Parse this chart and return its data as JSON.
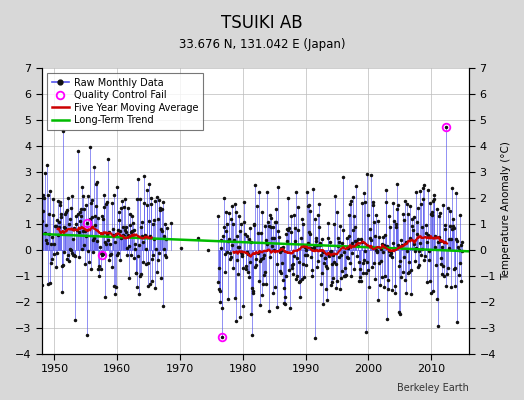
{
  "title": "TSUIKI AB",
  "subtitle": "33.676 N, 131.042 E (Japan)",
  "ylabel": "Temperature Anomaly (°C)",
  "credit": "Berkeley Earth",
  "xlim": [
    1948,
    2016
  ],
  "ylim": [
    -4,
    7
  ],
  "yticks": [
    -4,
    -3,
    -2,
    -1,
    0,
    1,
    2,
    3,
    4,
    5,
    6,
    7
  ],
  "xticks": [
    1950,
    1960,
    1970,
    1980,
    1990,
    2000,
    2010
  ],
  "bg_color": "#d8d8d8",
  "plot_bg_color": "#ffffff",
  "stem_color": "#5555ee",
  "dot_color": "#111111",
  "ma_color": "#cc0000",
  "trend_color": "#00bb00",
  "qc_color": "#ff00ff",
  "start_year": 1948,
  "end_year": 2014,
  "seed": 17
}
